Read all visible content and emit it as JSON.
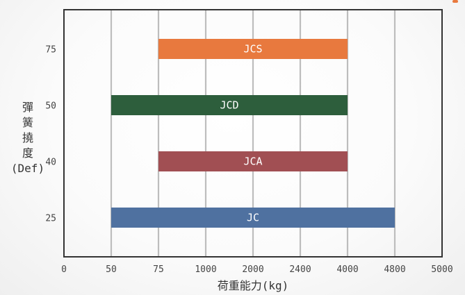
{
  "chart_data": {
    "type": "bar",
    "orientation": "horizontal-range",
    "title": "",
    "xlabel": "荷重能力(kg)",
    "ylabel_lines": [
      "彈",
      "簧",
      "撓",
      "度",
      "(Def)"
    ],
    "x_ticks": [
      "0",
      "50",
      "75",
      "1000",
      "2000",
      "2400",
      "4000",
      "4800",
      "5000"
    ],
    "categories": [
      "75",
      "50",
      "40",
      "25"
    ],
    "grid": "vertical",
    "bars": [
      {
        "name": "JCS",
        "category": "75",
        "start": "75",
        "end": "4000",
        "color": "#e8793e"
      },
      {
        "name": "JCD",
        "category": "50",
        "start": "50",
        "end": "4000",
        "color": "#2d5e3c"
      },
      {
        "name": "JCA",
        "category": "40",
        "start": "75",
        "end": "4000",
        "color": "#a14f53"
      },
      {
        "name": "JC",
        "category": "25",
        "start": "50",
        "end": "4800",
        "color": "#4f71a0"
      }
    ]
  }
}
